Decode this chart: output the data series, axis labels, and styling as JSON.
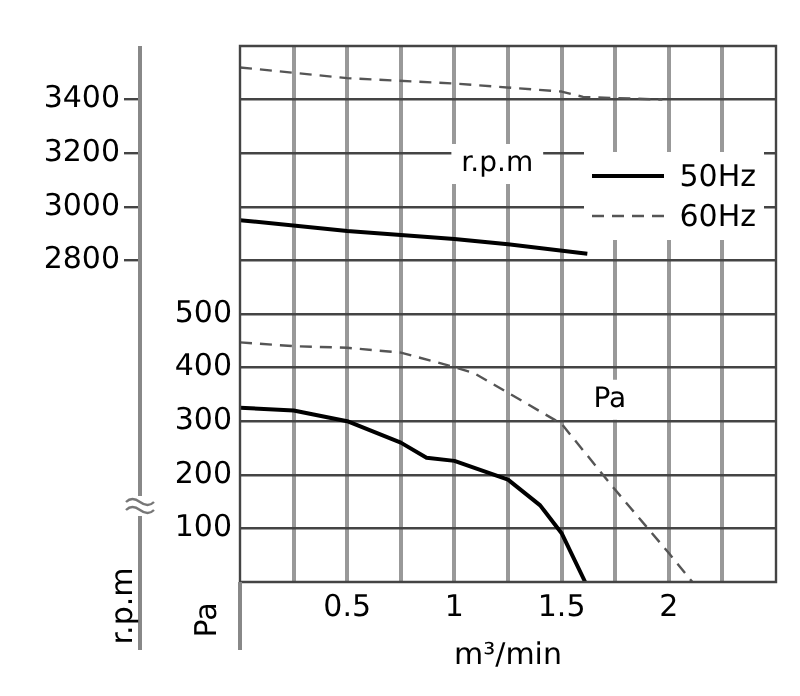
{
  "chart_data": {
    "type": "line",
    "xlabel": "m³/min",
    "ylabel": "Pa",
    "y2label": "r.p.m",
    "xlim": [
      0,
      2.5
    ],
    "xticks": [
      {
        "value": 0.25,
        "label": null
      },
      0.5,
      {
        "value": 0.75,
        "label": null
      },
      1,
      {
        "value": 1.25,
        "label": null
      },
      1.5,
      {
        "value": 1.75,
        "label": null
      },
      2,
      {
        "value": 2.25,
        "label": null
      }
    ],
    "ylim": [
      0,
      1000
    ],
    "yticks": [
      100,
      200,
      300,
      400,
      500
    ],
    "y2lim": [
      1600,
      3600
    ],
    "y2ticks": [
      2800,
      3000,
      3200,
      3400
    ],
    "series": [
      {
        "name": "50Hz",
        "color": "#000000",
        "axis": "y2",
        "line_style": "solid",
        "x": [
          0,
          0.5,
          1,
          1.25,
          1.62
        ],
        "values": [
          2950,
          2910,
          2880,
          2860,
          2825
        ]
      },
      {
        "name": "60Hz",
        "color": "#555555",
        "axis": "y2",
        "line_style": "dashed",
        "x": [
          0,
          0.5,
          1,
          1.5,
          1.6,
          1.97
        ],
        "values": [
          3520,
          3480,
          3460,
          3430,
          3410,
          3400
        ]
      },
      {
        "color": "#000000",
        "axis": "y",
        "line_style": "solid",
        "x": [
          0,
          0.25,
          0.5,
          0.75,
          0.87,
          1,
          1.25,
          1.4,
          1.5,
          1.61
        ],
        "values": [
          325,
          320,
          300,
          260,
          232,
          226,
          191,
          143,
          91,
          0
        ]
      },
      {
        "color": "#555555",
        "axis": "y",
        "line_style": "dashed",
        "x": [
          0,
          0.25,
          0.5,
          0.75,
          1,
          1.09,
          1.25,
          1.5,
          1.75,
          2,
          2.11
        ],
        "values": [
          447,
          440,
          437,
          428,
          401,
          390,
          353,
          295,
          172,
          54,
          0
        ]
      }
    ],
    "annotations": [
      "r.p.m",
      "Pa"
    ],
    "grid": true,
    "legend": "top right",
    "marker": "none"
  }
}
